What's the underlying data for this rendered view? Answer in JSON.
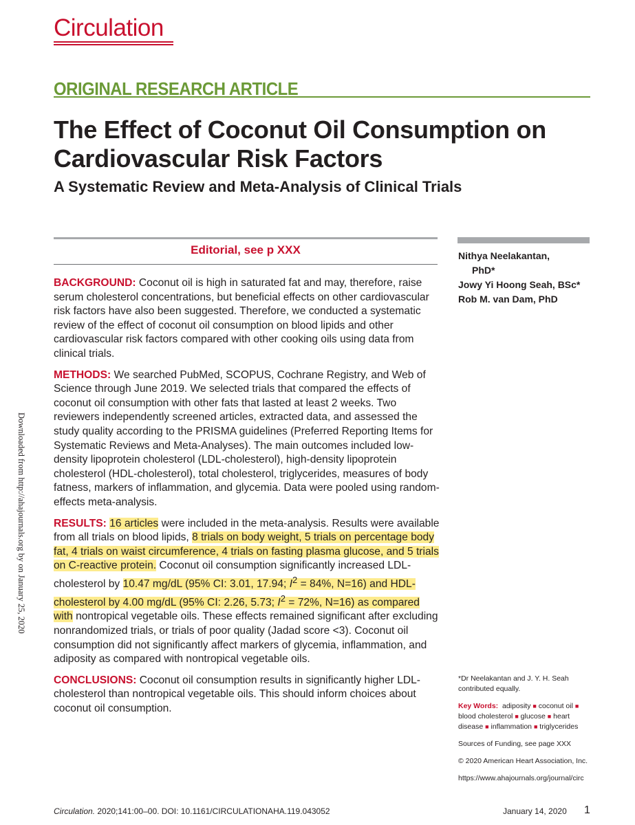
{
  "header": {
    "journal": "Circulation",
    "article_type": "ORIGINAL RESEARCH ARTICLE"
  },
  "title": {
    "line1": "The Effect of Coconut Oil Consumption on",
    "line2": "Cardiovascular Risk Factors",
    "subtitle": "A Systematic Review and Meta-Analysis of Clinical Trials"
  },
  "editorial": "Editorial, see p XXX",
  "abstract": {
    "background": {
      "label": "BACKGROUND:",
      "text": " Coconut oil is high in saturated fat and may, therefore, raise serum cholesterol concentrations, but beneficial effects on other cardiovascular risk factors have also been suggested. Therefore, we conducted a systematic review of the effect of coconut oil consumption on blood lipids and other cardiovascular risk factors compared with other cooking oils using data from clinical trials."
    },
    "methods": {
      "label": "METHODS:",
      "text": " We searched PubMed, SCOPUS, Cochrane Registry, and Web of Science through June 2019. We selected trials that compared the effects of coconut oil consumption with other fats that lasted at least 2 weeks. Two reviewers independently screened articles, extracted data, and assessed the study quality according to the PRISMA guidelines (Preferred Reporting Items for Systematic Reviews and Meta-Analyses). The main outcomes included low-density lipoprotein cholesterol (LDL-cholesterol), high-density lipoprotein cholesterol (HDL-cholesterol), total cholesterol, triglycerides, measures of body fatness, markers of inflammation, and glycemia. Data were pooled using random-effects meta-analysis."
    },
    "results": {
      "label": "RESULTS:",
      "hl1": "16 articles",
      "t1": " were included in the meta-analysis. Results were available from all trials on blood lipids, ",
      "hl2": "8 trials on body weight, 5 trials on percentage body fat, 4 trials on waist circumference, 4 trials on fasting plasma glucose, and 5 trials on C-reactive protein.",
      "t2": " Coconut oil consumption significantly increased LDL-cholesterol by ",
      "hl3a": "10.47 mg/dL (95% CI: 3.01, 17.94; ",
      "i2_a": "I",
      "sup_a": "2",
      "hl3b": " = 84%, N=16) and HDL-cholesterol by 4.00 mg/dL (95% CI: 2.26, 5.73; ",
      "i2_b": "I",
      "sup_b": "2",
      "hl3c": " = 72%, N=16) as compared with",
      "t3": " nontropical vegetable oils. These effects remained significant after excluding nonrandomized trials, or trials of poor quality (Jadad score <3). Coconut oil consumption did not significantly affect markers of glycemia, inflammation, and adiposity as compared with nontropical vegetable oils."
    },
    "conclusions": {
      "label": "CONCLUSIONS:",
      "text": " Coconut oil consumption results in significantly higher LDL-cholesterol than nontropical vegetable oils. This should inform choices about coconut oil consumption."
    }
  },
  "authors": {
    "a1_line1": "Nithya Neelakantan,",
    "a1_line2": "PhD*",
    "a2": "Jowy Yi Hoong Seah, BSc*",
    "a3": "Rob M. van Dam, PhD"
  },
  "sidebar": {
    "equal_note": "*Dr Neelakantan and J. Y. H. Seah contributed equally.",
    "keywords_label": "Key Words:",
    "keywords": [
      "adiposity",
      "coconut oil",
      "blood cholesterol",
      "glucose",
      "heart disease",
      "inflammation",
      "triglycerides"
    ],
    "funding": "Sources of Funding, see page XXX",
    "copyright": "© 2020 American Heart Association, Inc.",
    "url": "https://www.ahajournals.org/journal/circ"
  },
  "margin_note": "Downloaded from http://ahajournals.org by on January 25, 2020",
  "footer": {
    "journal_italic": "Circulation.",
    "citation": " 2020;141:00–00. DOI: 10.1161/CIRCULATIONAHA.119.043052",
    "date": "January 14, 2020",
    "page": "1"
  },
  "colors": {
    "accent_red": "#c8102e",
    "article_green": "#6b9a37",
    "highlight": "#fdeb8d",
    "rule_gray": "#a7a9ac"
  }
}
